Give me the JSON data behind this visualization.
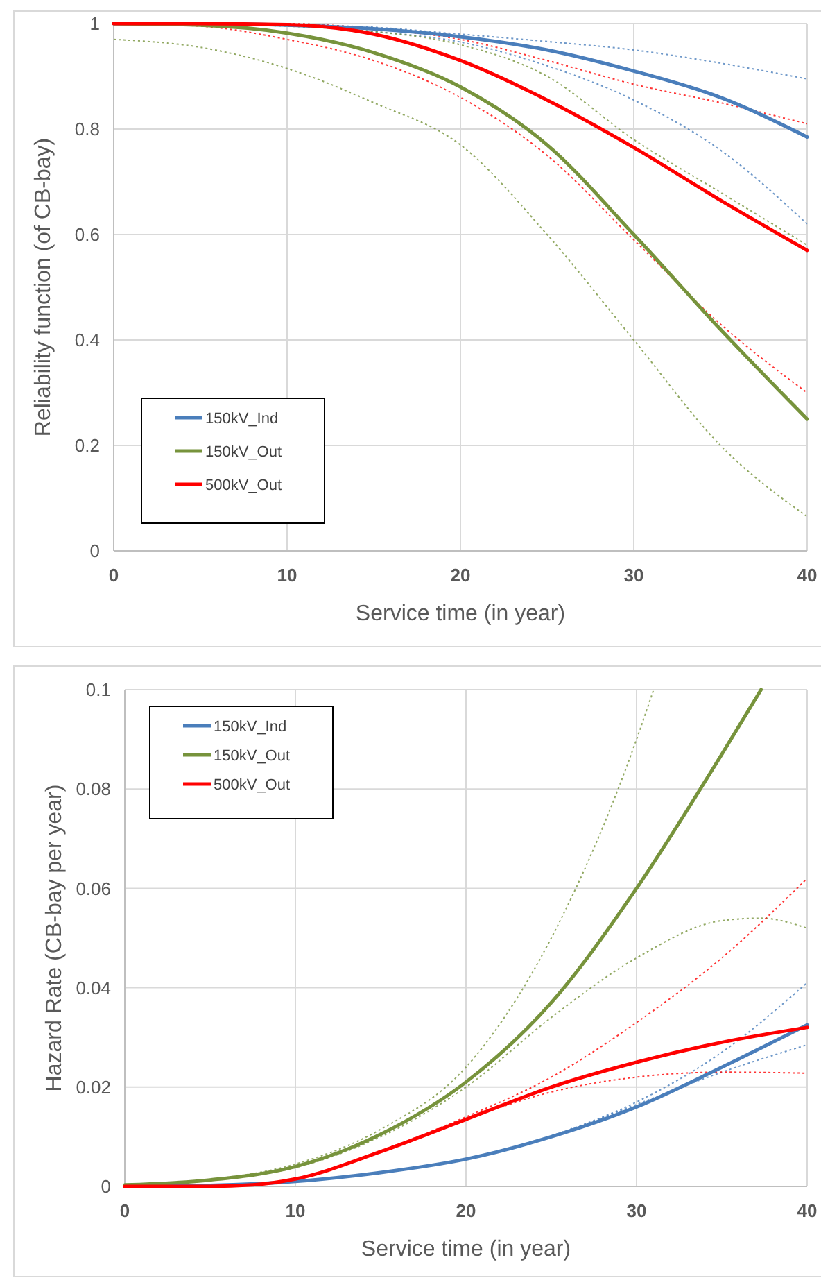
{
  "chart_data": [
    {
      "type": "line",
      "xlabel": "Service time (in year)",
      "ylabel": "Reliability function (of CB-bay)",
      "xlim": [
        0,
        40
      ],
      "ylim": [
        0,
        1
      ],
      "xticks": [
        0,
        10,
        20,
        30,
        40
      ],
      "yticks": [
        0,
        0.2,
        0.4,
        0.6,
        0.8,
        1
      ],
      "grid": true,
      "legend": "bottom left",
      "line_style": "solid",
      "x": [
        0,
        5,
        10,
        15,
        20,
        25,
        30,
        35,
        40
      ],
      "series": [
        {
          "color": "#4a7ebb",
          "line_style": "dotted",
          "values": [
            1,
            1,
            0.996,
            0.985,
            0.965,
            0.92,
            0.855,
            0.76,
            0.62
          ]
        },
        {
          "color": "#4a7ebb",
          "line_style": "dotted",
          "values": [
            1,
            1,
            0.998,
            0.993,
            0.98,
            0.966,
            0.95,
            0.925,
            0.895
          ]
        },
        {
          "color": "#77933c",
          "line_style": "dotted",
          "values": [
            0.97,
            0.955,
            0.915,
            0.85,
            0.77,
            0.6,
            0.4,
            0.2,
            0.065
          ]
        },
        {
          "color": "#77933c",
          "line_style": "dotted",
          "values": [
            1,
            0.999,
            0.995,
            0.985,
            0.96,
            0.9,
            0.78,
            0.68,
            0.58
          ]
        },
        {
          "color": "#ff0000",
          "line_style": "dotted",
          "values": [
            1,
            0.995,
            0.97,
            0.93,
            0.86,
            0.75,
            0.59,
            0.43,
            0.3
          ]
        },
        {
          "color": "#ff0000",
          "line_style": "dotted",
          "values": [
            1,
            1,
            1,
            0.99,
            0.97,
            0.93,
            0.885,
            0.85,
            0.81
          ]
        },
        {
          "name": "150kV_Ind",
          "color": "#4a7ebb",
          "values": [
            1,
            1,
            0.997,
            0.99,
            0.975,
            0.95,
            0.91,
            0.86,
            0.785
          ]
        },
        {
          "name": "150kV_Out",
          "color": "#77933c",
          "values": [
            1,
            0.997,
            0.982,
            0.945,
            0.88,
            0.77,
            0.6,
            0.42,
            0.25
          ]
        },
        {
          "name": "500kV_Out",
          "color": "#ff0000",
          "values": [
            1,
            1,
            0.998,
            0.98,
            0.93,
            0.855,
            0.765,
            0.665,
            0.57
          ]
        }
      ]
    },
    {
      "type": "line",
      "xlabel": "Service time (in year)",
      "ylabel": "Hazard Rate (CB-bay per year)",
      "xlim": [
        0,
        40
      ],
      "ylim": [
        0,
        0.1
      ],
      "xticks": [
        0,
        10,
        20,
        30,
        40
      ],
      "yticks": [
        0,
        0.02,
        0.04,
        0.06,
        0.08,
        0.1
      ],
      "grid": true,
      "legend": "top left",
      "line_style": "solid",
      "series": [
        {
          "color": "#4a7ebb",
          "line_style": "dotted",
          "x": [
            0,
            5,
            10,
            15,
            20,
            25,
            30,
            35,
            40
          ],
          "values": [
            0,
            0.0002,
            0.001,
            0.0028,
            0.0055,
            0.01,
            0.0165,
            0.023,
            0.0285
          ]
        },
        {
          "color": "#4a7ebb",
          "line_style": "dotted",
          "x": [
            0,
            5,
            10,
            15,
            20,
            25,
            30,
            35,
            40
          ],
          "values": [
            0,
            0.0002,
            0.001,
            0.0028,
            0.0055,
            0.0102,
            0.017,
            0.027,
            0.041
          ]
        },
        {
          "color": "#77933c",
          "line_style": "dotted",
          "x": [
            0,
            5,
            10,
            15,
            20,
            25,
            30,
            35,
            37.3,
            40
          ],
          "values": [
            0.0003,
            0.0013,
            0.0038,
            0.01,
            0.02,
            0.034,
            0.046,
            0.0535,
            0.054,
            0.052
          ]
        },
        {
          "color": "#77933c",
          "line_style": "dotted",
          "x": [
            0,
            5,
            10,
            15,
            20,
            25,
            30,
            31
          ],
          "values": [
            0.0003,
            0.0014,
            0.0045,
            0.0115,
            0.024,
            0.05,
            0.09,
            0.1
          ]
        },
        {
          "color": "#ff0000",
          "line_style": "dotted",
          "x": [
            0,
            5,
            7.5,
            10,
            15,
            20,
            25,
            30,
            35,
            40
          ],
          "values": [
            0,
            0,
            0.0003,
            0.0015,
            0.007,
            0.0135,
            0.019,
            0.022,
            0.023,
            0.0228
          ]
        },
        {
          "color": "#ff0000",
          "line_style": "dotted",
          "x": [
            0,
            5,
            7.5,
            10,
            15,
            20,
            25,
            30,
            35,
            40
          ],
          "values": [
            0,
            0,
            0.0003,
            0.0015,
            0.0072,
            0.014,
            0.022,
            0.033,
            0.046,
            0.062
          ]
        },
        {
          "name": "150kV_Ind",
          "color": "#4a7ebb",
          "x": [
            0,
            5,
            10,
            15,
            20,
            25,
            30,
            35,
            40
          ],
          "values": [
            0,
            0.0002,
            0.001,
            0.0028,
            0.0055,
            0.01,
            0.016,
            0.024,
            0.0325
          ]
        },
        {
          "name": "150kV_Out",
          "color": "#77933c",
          "x": [
            0,
            5,
            10,
            15,
            20,
            25,
            30,
            35,
            37.3
          ],
          "values": [
            0.0003,
            0.0013,
            0.004,
            0.0105,
            0.021,
            0.037,
            0.06,
            0.087,
            0.1
          ]
        },
        {
          "name": "500kV_Out",
          "color": "#ff0000",
          "x": [
            0,
            5,
            7.5,
            10,
            15,
            20,
            25,
            30,
            35,
            40
          ],
          "values": [
            0,
            0,
            0.0003,
            0.0015,
            0.007,
            0.0135,
            0.02,
            0.025,
            0.029,
            0.032
          ]
        }
      ]
    }
  ]
}
